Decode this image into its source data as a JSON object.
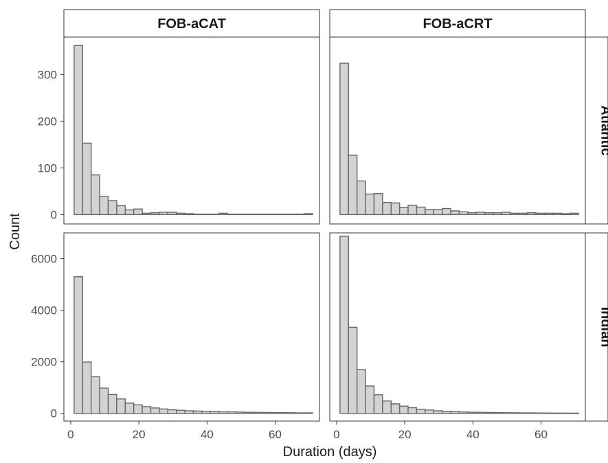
{
  "chart_data": {
    "type": "bar",
    "xlabel": "Duration (days)",
    "ylabel": "Count",
    "col_strips": [
      "FOB-aCAT",
      "FOB-aCRT"
    ],
    "row_strips": [
      "Atlantic",
      "Indian"
    ],
    "xlim": [
      -2,
      73
    ],
    "x_ticks": [
      0,
      20,
      40,
      60
    ],
    "bin_width": 2.5,
    "bin_start": 1,
    "bar_fill": "#d3d3d3",
    "bar_stroke": "#666666",
    "rows": [
      {
        "ylim": [
          -20,
          380
        ],
        "y_ticks": [
          0,
          100,
          200,
          300
        ]
      },
      {
        "ylim": [
          -300,
          7000
        ],
        "y_ticks": [
          0,
          2000,
          4000,
          6000
        ]
      }
    ],
    "panels": [
      {
        "row": "Atlantic",
        "col": "FOB-aCAT",
        "values": [
          362,
          153,
          85,
          39,
          30,
          19,
          10,
          12,
          3,
          4,
          5,
          5,
          3,
          2,
          1,
          1,
          1,
          3,
          1,
          1,
          1,
          1,
          1,
          1,
          1,
          1,
          1,
          2,
          1,
          1,
          1,
          1,
          1,
          1,
          1,
          1,
          1,
          1,
          1,
          1,
          1,
          1
        ]
      },
      {
        "row": "Atlantic",
        "col": "FOB-aCRT",
        "values": [
          324,
          127,
          72,
          44,
          45,
          26,
          25,
          15,
          20,
          16,
          11,
          11,
          13,
          8,
          6,
          4,
          5,
          4,
          4,
          5,
          3,
          3,
          4,
          3,
          3,
          3,
          2,
          3,
          3,
          2,
          2,
          2,
          1,
          1,
          2,
          1,
          1,
          2,
          1,
          1,
          1,
          1
        ]
      },
      {
        "row": "Indian",
        "col": "FOB-aCAT",
        "values": [
          5300,
          1990,
          1420,
          980,
          730,
          560,
          400,
          330,
          260,
          210,
          170,
          140,
          120,
          100,
          90,
          80,
          70,
          60,
          60,
          50,
          40,
          40,
          35,
          30,
          30,
          25,
          20,
          20,
          18,
          15,
          15,
          12,
          10,
          10,
          10,
          8,
          8,
          6,
          6,
          5,
          5,
          5
        ]
      },
      {
        "row": "Indian",
        "col": "FOB-aCRT",
        "values": [
          6870,
          3340,
          1700,
          1060,
          720,
          480,
          370,
          280,
          220,
          160,
          130,
          100,
          80,
          70,
          55,
          45,
          40,
          35,
          30,
          25,
          22,
          20,
          18,
          15,
          12,
          10,
          10,
          8,
          8,
          6,
          6,
          5,
          5,
          4,
          4,
          3,
          3,
          3,
          2,
          2,
          2,
          2
        ]
      }
    ]
  }
}
